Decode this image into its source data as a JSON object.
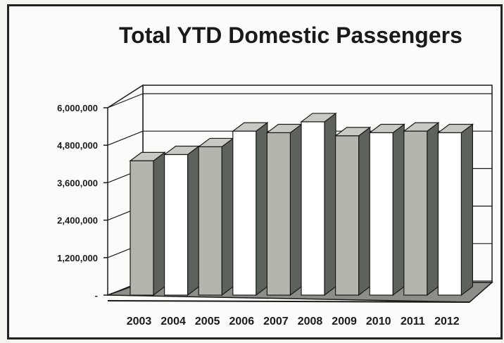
{
  "chart_data": {
    "type": "bar",
    "title": "Total YTD Domestic Passengers",
    "categories": [
      "2003",
      "2004",
      "2005",
      "2006",
      "2007",
      "2008",
      "2009",
      "2010",
      "2011",
      "2012"
    ],
    "values": [
      4300000,
      4500000,
      4750000,
      5250000,
      5200000,
      5550000,
      5100000,
      5200000,
      5250000,
      5200000
    ],
    "ylim": [
      0,
      6000000
    ],
    "yticks": [
      "-",
      "1,200,000",
      "2,400,000",
      "3,600,000",
      "4,800,000",
      "6,000,000"
    ],
    "ytick_values": [
      0,
      1200000,
      2400000,
      3600000,
      4800000,
      6000000
    ],
    "grid": true,
    "legend": "none",
    "style": "3d-column",
    "colors": {
      "gray_face": "#b4b6ae",
      "white_face": "#ffffff",
      "side": "#5e625c",
      "top": "#c8c9c3",
      "outline": "#1a1a1a"
    }
  }
}
